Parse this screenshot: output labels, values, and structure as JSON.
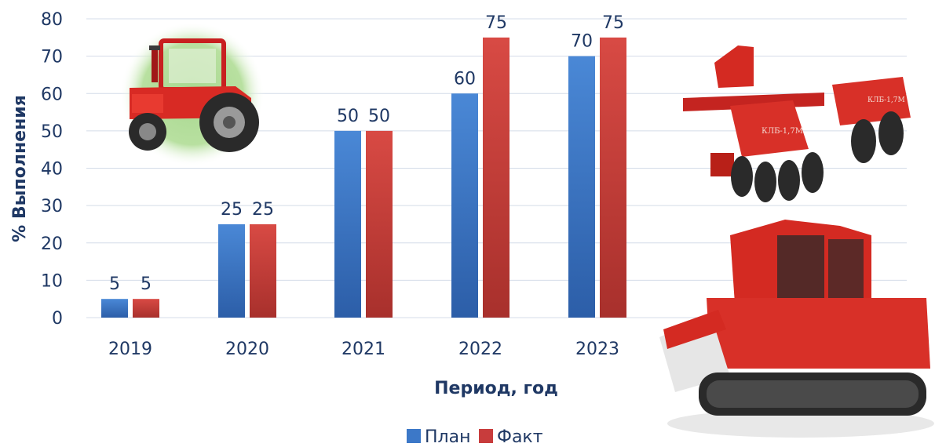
{
  "chart_data": {
    "type": "bar",
    "categories": [
      "2019",
      "2020",
      "2021",
      "2022",
      "2023"
    ],
    "series": [
      {
        "name": "План",
        "values": [
          5,
          25,
          50,
          60,
          70
        ],
        "color": "#3c78c8"
      },
      {
        "name": "Факт",
        "values": [
          5,
          25,
          50,
          75,
          75
        ],
        "color": "#c83c3c"
      }
    ],
    "xlabel": "Период, год",
    "ylabel": "% Выполнения",
    "ylim": [
      0,
      80
    ],
    "yticks": [
      0,
      10,
      20,
      30,
      40,
      50,
      60,
      70,
      80
    ],
    "grid": true,
    "legend": "bottom-center",
    "images": [
      "red-wheeled-tractor-icon",
      "red-disc-harrow-implement",
      "red-crawler-tractor-with-blade"
    ]
  }
}
